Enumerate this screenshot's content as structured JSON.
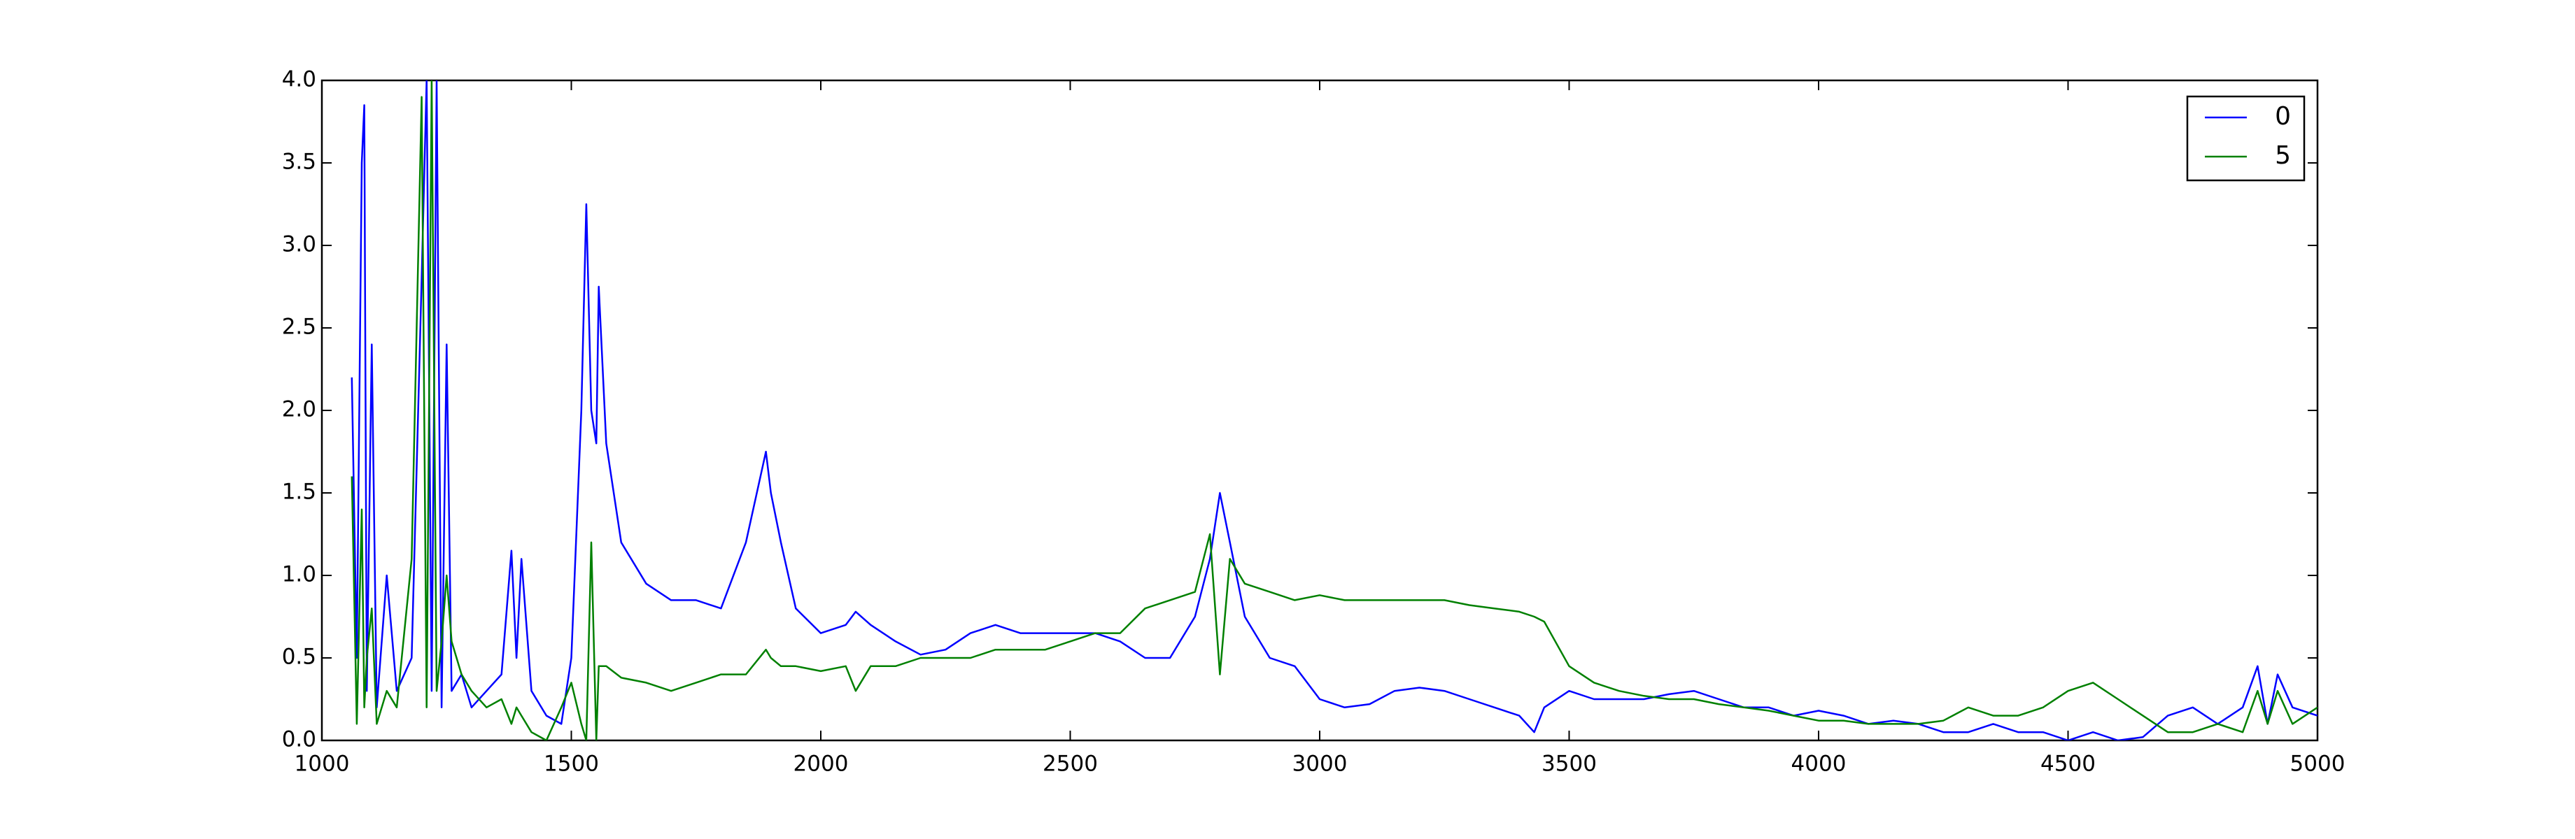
{
  "chart_data": {
    "type": "line",
    "x": [
      1060,
      1070,
      1080,
      1085,
      1090,
      1100,
      1110,
      1130,
      1150,
      1180,
      1200,
      1210,
      1220,
      1230,
      1240,
      1250,
      1260,
      1280,
      1300,
      1330,
      1360,
      1380,
      1390,
      1400,
      1420,
      1450,
      1480,
      1500,
      1520,
      1530,
      1540,
      1550,
      1555,
      1570,
      1600,
      1650,
      1700,
      1750,
      1800,
      1850,
      1890,
      1900,
      1920,
      1950,
      2000,
      2050,
      2070,
      2100,
      2150,
      2200,
      2250,
      2300,
      2350,
      2400,
      2450,
      2500,
      2550,
      2600,
      2650,
      2700,
      2750,
      2780,
      2800,
      2820,
      2850,
      2900,
      2950,
      3000,
      3050,
      3100,
      3150,
      3200,
      3250,
      3300,
      3350,
      3400,
      3430,
      3450,
      3500,
      3550,
      3600,
      3650,
      3700,
      3750,
      3800,
      3850,
      3900,
      3950,
      4000,
      4050,
      4100,
      4150,
      4200,
      4250,
      4300,
      4350,
      4400,
      4450,
      4500,
      4550,
      4600,
      4650,
      4700,
      4750,
      4800,
      4850,
      4880,
      4900,
      4920,
      4950,
      5000
    ],
    "series": [
      {
        "name": "0",
        "color": "#0000ff",
        "values": [
          2.2,
          0.5,
          3.5,
          3.85,
          0.3,
          2.4,
          0.2,
          1.0,
          0.3,
          0.5,
          2.8,
          4.0,
          0.3,
          4.0,
          0.2,
          2.4,
          0.3,
          0.4,
          0.2,
          0.3,
          0.4,
          1.15,
          0.5,
          1.1,
          0.3,
          0.15,
          0.1,
          0.5,
          2.0,
          3.25,
          2.0,
          1.8,
          2.75,
          1.8,
          1.2,
          0.95,
          0.85,
          0.85,
          0.8,
          1.2,
          1.75,
          1.5,
          1.2,
          0.8,
          0.65,
          0.7,
          0.78,
          0.7,
          0.6,
          0.52,
          0.55,
          0.65,
          0.7,
          0.65,
          0.65,
          0.65,
          0.65,
          0.6,
          0.5,
          0.5,
          0.75,
          1.1,
          1.5,
          1.2,
          0.75,
          0.5,
          0.45,
          0.25,
          0.2,
          0.22,
          0.3,
          0.32,
          0.3,
          0.25,
          0.2,
          0.15,
          0.05,
          0.2,
          0.3,
          0.25,
          0.25,
          0.25,
          0.28,
          0.3,
          0.25,
          0.2,
          0.2,
          0.15,
          0.18,
          0.15,
          0.1,
          0.12,
          0.1,
          0.05,
          0.05,
          0.1,
          0.05,
          0.05,
          0.0,
          0.05,
          0.0,
          0.02,
          0.15,
          0.2,
          0.1,
          0.2,
          0.45,
          0.1,
          0.4,
          0.2,
          0.15
        ]
      },
      {
        "name": "5",
        "color": "#008000",
        "values": [
          1.6,
          0.1,
          1.4,
          0.2,
          0.5,
          0.8,
          0.1,
          0.3,
          0.2,
          1.1,
          3.9,
          0.2,
          4.0,
          0.3,
          0.6,
          1.0,
          0.6,
          0.4,
          0.3,
          0.2,
          0.25,
          0.1,
          0.2,
          0.15,
          0.05,
          0.0,
          0.2,
          0.35,
          0.1,
          0.0,
          1.2,
          0.0,
          0.45,
          0.45,
          0.38,
          0.35,
          0.3,
          0.35,
          0.4,
          0.4,
          0.55,
          0.5,
          0.45,
          0.45,
          0.42,
          0.45,
          0.3,
          0.45,
          0.45,
          0.5,
          0.5,
          0.5,
          0.55,
          0.55,
          0.55,
          0.6,
          0.65,
          0.65,
          0.8,
          0.85,
          0.9,
          1.25,
          0.4,
          1.1,
          0.95,
          0.9,
          0.85,
          0.88,
          0.85,
          0.85,
          0.85,
          0.85,
          0.85,
          0.82,
          0.8,
          0.78,
          0.75,
          0.72,
          0.45,
          0.35,
          0.3,
          0.27,
          0.25,
          0.25,
          0.22,
          0.2,
          0.18,
          0.15,
          0.12,
          0.12,
          0.1,
          0.1,
          0.1,
          0.12,
          0.2,
          0.15,
          0.15,
          0.2,
          0.3,
          0.35,
          0.25,
          0.15,
          0.05,
          0.05,
          0.1,
          0.05,
          0.3,
          0.1,
          0.3,
          0.1,
          0.2
        ]
      }
    ],
    "xlim": [
      1000,
      5000
    ],
    "xticks": [
      1000,
      1500,
      2000,
      2500,
      3000,
      3500,
      4000,
      4500,
      5000
    ],
    "ylim": [
      0,
      4
    ],
    "yticks": [
      {
        "value": 0,
        "label": "0.0"
      },
      0.5,
      {
        "value": 1,
        "label": "1.0"
      },
      1.5,
      {
        "value": 2,
        "label": "2.0"
      },
      2.5,
      {
        "value": 3,
        "label": "3.0"
      },
      3.5,
      {
        "value": 4,
        "label": "4.0"
      }
    ],
    "grid": false,
    "legend": "upper right"
  }
}
